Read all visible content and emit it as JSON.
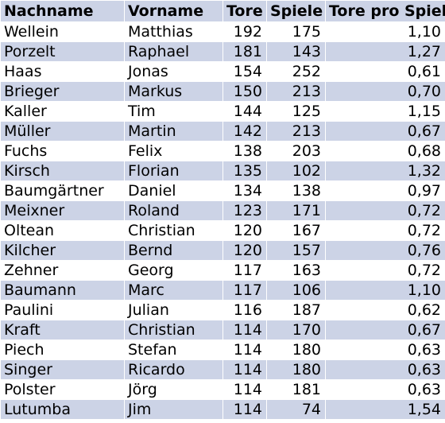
{
  "table": {
    "headers": [
      "Nachname",
      "Vorname",
      "Tore",
      "Spiele",
      "Tore pro Spiel"
    ],
    "rows": [
      [
        "Wellein",
        "Matthias",
        "192",
        "175",
        "1,10"
      ],
      [
        "Porzelt",
        "Raphael",
        "181",
        "143",
        "1,27"
      ],
      [
        "Haas",
        "Jonas",
        "154",
        "252",
        "0,61"
      ],
      [
        "Brieger",
        "Markus",
        "150",
        "213",
        "0,70"
      ],
      [
        "Kaller",
        "Tim",
        "144",
        "125",
        "1,15"
      ],
      [
        "Müller",
        "Martin",
        "142",
        "213",
        "0,67"
      ],
      [
        "Fuchs",
        "Felix",
        "138",
        "203",
        "0,68"
      ],
      [
        "Kirsch",
        "Florian",
        "135",
        "102",
        "1,32"
      ],
      [
        "Baumgärtner",
        "Daniel",
        "134",
        "138",
        "0,97"
      ],
      [
        "Meixner",
        "Roland",
        "123",
        "171",
        "0,72"
      ],
      [
        "Oltean",
        "Christian",
        "120",
        "167",
        "0,72"
      ],
      [
        "Kilcher",
        "Bernd",
        "120",
        "157",
        "0,76"
      ],
      [
        "Zehner",
        "Georg",
        "117",
        "163",
        "0,72"
      ],
      [
        "Baumann",
        "Marc",
        "117",
        "106",
        "1,10"
      ],
      [
        "Paulini",
        "Julian",
        "116",
        "187",
        "0,62"
      ],
      [
        "Kraft",
        "Christian",
        "114",
        "170",
        "0,67"
      ],
      [
        "Piech",
        "Stefan",
        "114",
        "180",
        "0,63"
      ],
      [
        "Singer",
        "Ricardo",
        "114",
        "180",
        "0,63"
      ],
      [
        "Polster",
        "Jörg",
        "114",
        "181",
        "0,63"
      ],
      [
        "Lutumba",
        "Jim",
        "114",
        "74",
        "1,54"
      ]
    ]
  },
  "colors": {
    "header_bg": "#ccd3e6",
    "band_bg": "#ccd3e6",
    "plain_bg": "#ffffff"
  }
}
